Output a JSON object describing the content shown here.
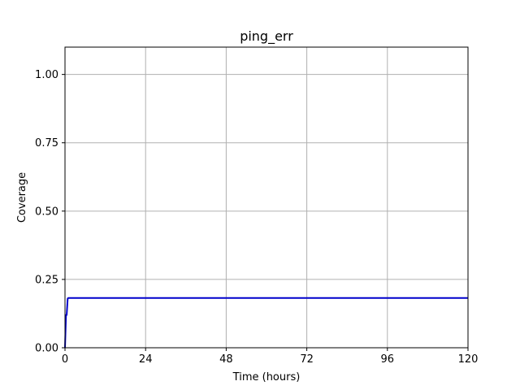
{
  "chart_data": {
    "type": "line",
    "title": "ping_err",
    "xlabel": "Time (hours)",
    "ylabel": "Coverage",
    "xlim": [
      0,
      120
    ],
    "ylim": [
      0,
      1.1
    ],
    "x_ticks": [
      0,
      24,
      48,
      72,
      96,
      120
    ],
    "y_ticks": [
      0.0,
      0.25,
      0.5,
      0.75,
      1.0
    ],
    "x_tick_labels": [
      "0",
      "24",
      "48",
      "72",
      "96",
      "120"
    ],
    "y_tick_labels": [
      "0.00",
      "0.25",
      "0.50",
      "0.75",
      "1.00"
    ],
    "grid": true,
    "series": [
      {
        "color": "#0000cc",
        "x": [
          0.0,
          0.3,
          0.5,
          0.6,
          0.8,
          1.0,
          2,
          12,
          24,
          48,
          72,
          96,
          120
        ],
        "y": [
          0.0,
          0.12,
          0.12,
          0.14,
          0.18,
          0.182,
          0.182,
          0.182,
          0.182,
          0.182,
          0.182,
          0.182,
          0.182
        ]
      }
    ]
  }
}
